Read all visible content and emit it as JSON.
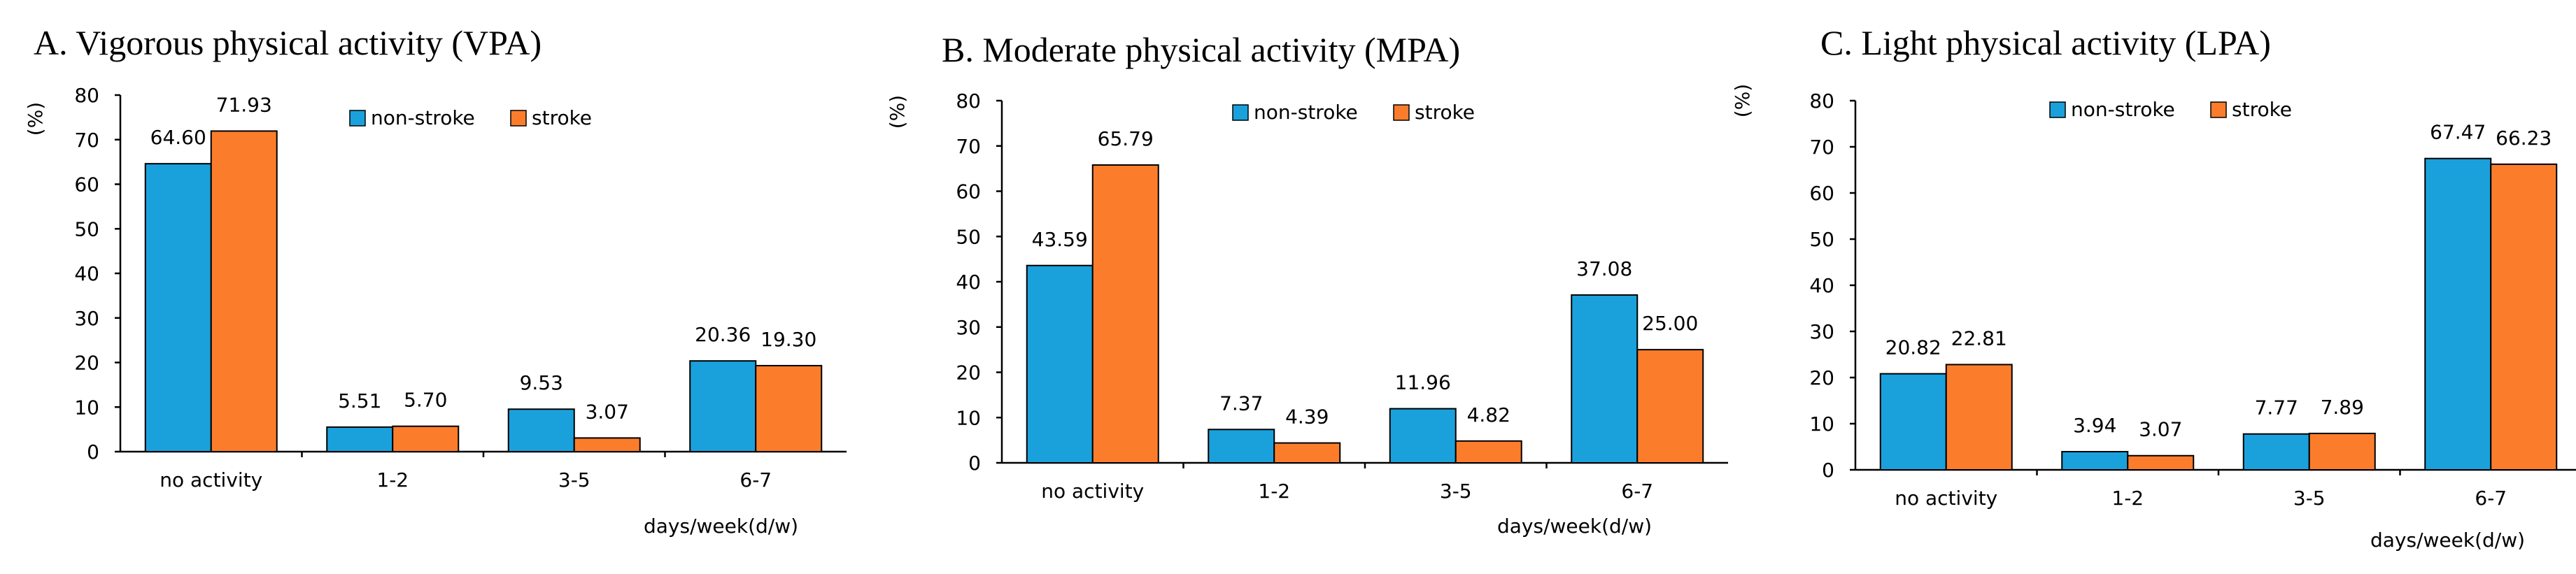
{
  "colors": {
    "non_stroke": "#1aa1dc",
    "stroke": "#fb7d2c"
  },
  "chart_data": [
    {
      "type": "bar",
      "title": "A. Vigorous physical activity (VPA)",
      "ylabel": "(%)",
      "xlabel": "days/week(d/w)",
      "ylim": [
        0,
        80
      ],
      "yticks": [
        0,
        10,
        20,
        30,
        40,
        50,
        60,
        70,
        80
      ],
      "grid": false,
      "legend": "top-right",
      "categories": [
        "no activity",
        "1-2",
        "3-5",
        "6-7"
      ],
      "series": [
        {
          "name": "non-stroke",
          "values": [
            64.6,
            5.51,
            9.53,
            20.36
          ],
          "labels": [
            "64.60",
            "5.51",
            "9.53",
            "20.36"
          ]
        },
        {
          "name": "stroke",
          "values": [
            71.93,
            5.7,
            3.07,
            19.3
          ],
          "labels": [
            "71.93",
            "5.70",
            "3.07",
            "19.30"
          ]
        }
      ]
    },
    {
      "type": "bar",
      "title": "B. Moderate physical activity (MPA)",
      "ylabel": "(%)",
      "xlabel": "days/week(d/w)",
      "ylim": [
        0,
        80
      ],
      "yticks": [
        0,
        10,
        20,
        30,
        40,
        50,
        60,
        70,
        80
      ],
      "grid": false,
      "legend": "top-right",
      "categories": [
        "no activity",
        "1-2",
        "3-5",
        "6-7"
      ],
      "series": [
        {
          "name": "non-stroke",
          "values": [
            43.59,
            7.37,
            11.96,
            37.08
          ],
          "labels": [
            "43.59",
            "7.37",
            "11.96",
            "37.08"
          ]
        },
        {
          "name": "stroke",
          "values": [
            65.79,
            4.39,
            4.82,
            25.0
          ],
          "labels": [
            "65.79",
            "4.39",
            "4.82",
            "25.00"
          ]
        }
      ]
    },
    {
      "type": "bar",
      "title": "C. Light physical activity (LPA)",
      "ylabel": "(%)",
      "xlabel": "days/week(d/w)",
      "ylim": [
        0,
        80
      ],
      "yticks": [
        0,
        10,
        20,
        30,
        40,
        50,
        60,
        70,
        80
      ],
      "grid": false,
      "legend": "top-right",
      "categories": [
        "no activity",
        "1-2",
        "3-5",
        "6-7"
      ],
      "series": [
        {
          "name": "non-stroke",
          "values": [
            20.82,
            3.94,
            7.77,
            67.47
          ],
          "labels": [
            "20.82",
            "3.94",
            "7.77",
            "67.47"
          ]
        },
        {
          "name": "stroke",
          "values": [
            22.81,
            3.07,
            7.89,
            66.23
          ],
          "labels": [
            "22.81",
            "3.07",
            "7.89",
            "66.23"
          ]
        }
      ]
    }
  ]
}
